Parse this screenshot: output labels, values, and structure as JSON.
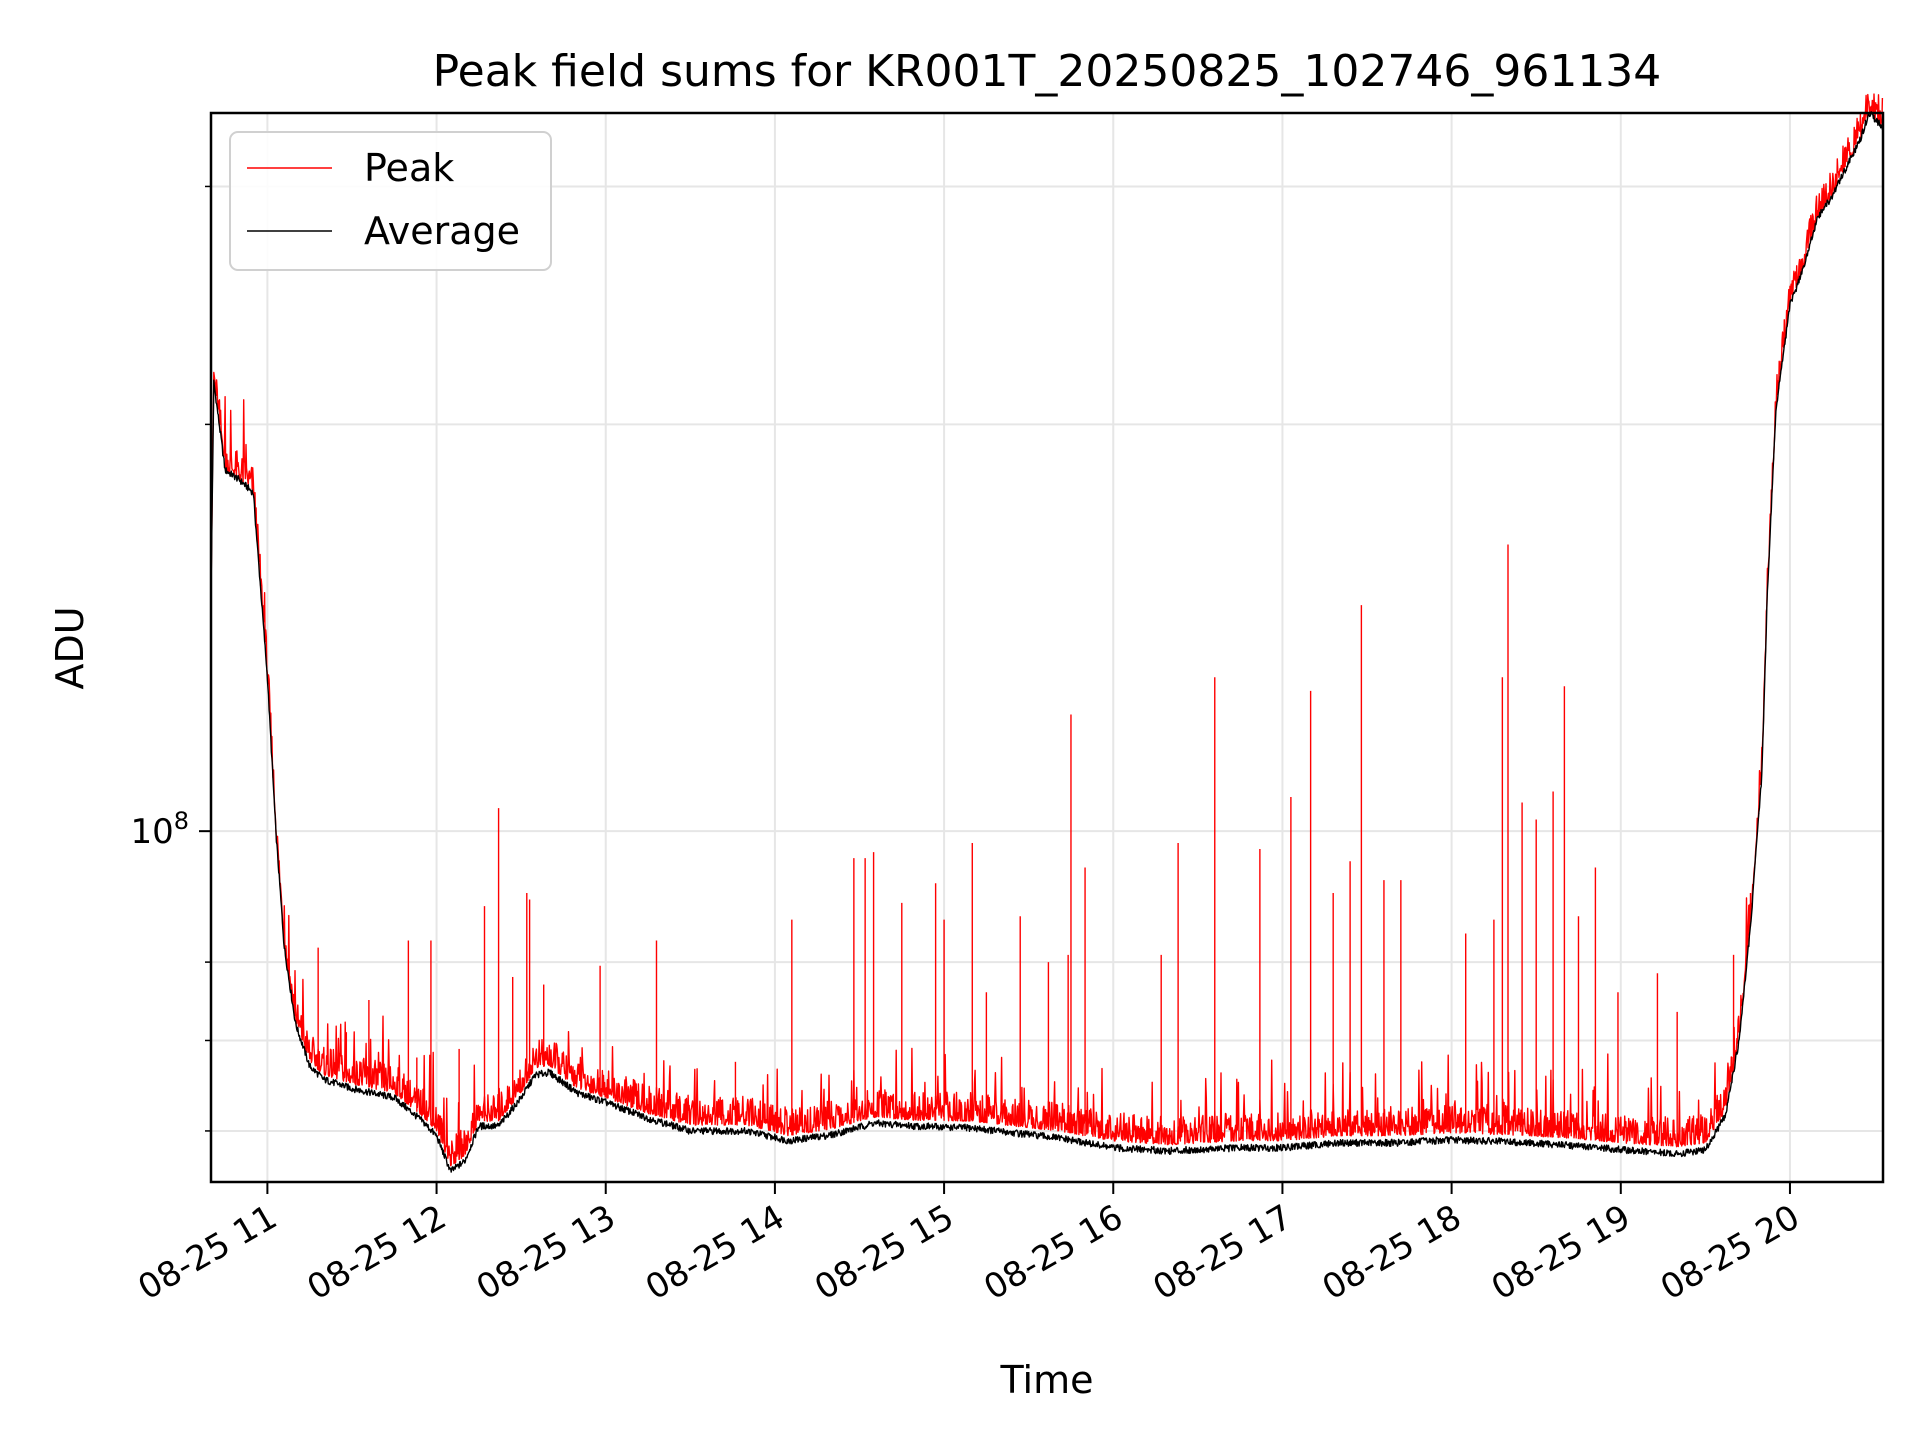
{
  "chart_data": {
    "type": "line",
    "title": "Peak field sums for KR001T_20250825_102746_961134",
    "xlabel": "Time",
    "ylabel": "ADU",
    "y_scale": "log",
    "grid": true,
    "legend_position": "top-left",
    "x_tick_labels": [
      "08-25 11",
      "08-25 12",
      "08-25 13",
      "08-25 14",
      "08-25 15",
      "08-25 16",
      "08-25 17",
      "08-25 18",
      "08-25 19",
      "08-25 20"
    ],
    "y_tick_labels": [
      "10^8"
    ],
    "x_range": [
      "2025-08-25 10:40",
      "2025-08-25 20:33"
    ],
    "y_range_adu": [
      55000000,
      340000000
    ],
    "series": [
      {
        "name": "Peak",
        "color": "#ff0000",
        "baseline_points": [
          [
            "10:40",
            150000000
          ],
          [
            "10:41",
            215000000
          ],
          [
            "10:45",
            185000000
          ],
          [
            "10:50",
            182000000
          ],
          [
            "10:55",
            178000000
          ],
          [
            "11:00",
            130000000
          ],
          [
            "11:03",
            100000000
          ],
          [
            "11:06",
            82000000
          ],
          [
            "11:10",
            72000000
          ],
          [
            "11:15",
            67500000
          ],
          [
            "11:20",
            66000000
          ],
          [
            "11:30",
            65000000
          ],
          [
            "11:45",
            64000000
          ],
          [
            "11:55",
            61500000
          ],
          [
            "12:00",
            60000000
          ],
          [
            "12:05",
            56500000
          ],
          [
            "12:10",
            57500000
          ],
          [
            "12:15",
            61000000
          ],
          [
            "12:22",
            61000000
          ],
          [
            "12:30",
            64000000
          ],
          [
            "12:35",
            66800000
          ],
          [
            "12:40",
            67000000
          ],
          [
            "12:50",
            64500000
          ],
          [
            "13:00",
            63500000
          ],
          [
            "13:15",
            61800000
          ],
          [
            "13:30",
            60600000
          ],
          [
            "13:50",
            60600000
          ],
          [
            "14:05",
            59500000
          ],
          [
            "14:20",
            60200000
          ],
          [
            "14:35",
            61400000
          ],
          [
            "14:50",
            61100000
          ],
          [
            "15:10",
            61000000
          ],
          [
            "15:40",
            60000000
          ],
          [
            "16:00",
            59000000
          ],
          [
            "16:20",
            58600000
          ],
          [
            "16:45",
            59000000
          ],
          [
            "17:00",
            59000000
          ],
          [
            "17:20",
            59500000
          ],
          [
            "17:40",
            59500000
          ],
          [
            "18:00",
            59800000
          ],
          [
            "18:20",
            59600000
          ],
          [
            "18:40",
            59300000
          ],
          [
            "19:00",
            58800000
          ],
          [
            "19:20",
            58400000
          ],
          [
            "19:30",
            58800000
          ],
          [
            "19:37",
            62000000
          ],
          [
            "19:42",
            70000000
          ],
          [
            "19:46",
            85000000
          ],
          [
            "19:50",
            110000000
          ],
          [
            "19:52",
            150000000
          ],
          [
            "19:55",
            205000000
          ],
          [
            "20:00",
            245000000
          ],
          [
            "20:05",
            262000000
          ],
          [
            "20:10",
            285000000
          ],
          [
            "20:15",
            295000000
          ],
          [
            "20:20",
            310000000
          ],
          [
            "20:25",
            325000000
          ],
          [
            "20:28",
            340000000
          ],
          [
            "20:33",
            332000000
          ]
        ],
        "spikes": [
          [
            "11:18",
            82000000
          ],
          [
            "11:28",
            71000000
          ],
          [
            "11:36",
            75000000
          ],
          [
            "11:50",
            83000000
          ],
          [
            "11:53",
            68000000
          ],
          [
            "11:58",
            83000000
          ],
          [
            "12:08",
            69000000
          ],
          [
            "12:17",
            88000000
          ],
          [
            "12:22",
            104000000
          ],
          [
            "12:27",
            78000000
          ],
          [
            "12:32",
            90000000
          ],
          [
            "12:33",
            89000000
          ],
          [
            "12:38",
            77000000
          ],
          [
            "12:58",
            79500000
          ],
          [
            "13:18",
            83000000
          ],
          [
            "13:46",
            67500000
          ],
          [
            "14:06",
            86000000
          ],
          [
            "14:28",
            95500000
          ],
          [
            "14:32",
            95500000
          ],
          [
            "14:35",
            96500000
          ],
          [
            "14:45",
            88500000
          ],
          [
            "14:57",
            91500000
          ],
          [
            "15:00",
            86000000
          ],
          [
            "15:10",
            98000000
          ],
          [
            "15:15",
            76000000
          ],
          [
            "15:27",
            86500000
          ],
          [
            "15:37",
            80000000
          ],
          [
            "15:44",
            81000000
          ],
          [
            "15:45",
            122000000
          ],
          [
            "15:50",
            94000000
          ],
          [
            "16:17",
            81000000
          ],
          [
            "16:23",
            98000000
          ],
          [
            "16:36",
            130000000
          ],
          [
            "16:52",
            97000000
          ],
          [
            "17:03",
            106000000
          ],
          [
            "17:10",
            127000000
          ],
          [
            "17:18",
            90000000
          ],
          [
            "17:24",
            95000000
          ],
          [
            "17:28",
            147000000
          ],
          [
            "17:36",
            92000000
          ],
          [
            "17:42",
            92000000
          ],
          [
            "18:05",
            84000000
          ],
          [
            "18:15",
            86000000
          ],
          [
            "18:18",
            130000000
          ],
          [
            "18:25",
            105000000
          ],
          [
            "18:30",
            102000000
          ],
          [
            "18:36",
            107000000
          ],
          [
            "18:40",
            128000000
          ],
          [
            "18:45",
            86500000
          ],
          [
            "18:51",
            94000000
          ],
          [
            "18:59",
            76000000
          ],
          [
            "19:13",
            78500000
          ],
          [
            "19:20",
            73500000
          ],
          [
            "19:40",
            81000000
          ],
          [
            "19:46",
            90000000
          ],
          [
            "19:49",
            103000000
          ],
          [
            "18:20",
            163000000
          ]
        ]
      },
      {
        "name": "Average",
        "color": "#000000",
        "baseline_points": [
          [
            "10:40",
            150000000
          ],
          [
            "10:41",
            215000000
          ],
          [
            "10:45",
            185000000
          ],
          [
            "10:50",
            182000000
          ],
          [
            "10:55",
            178000000
          ],
          [
            "11:00",
            130000000
          ],
          [
            "11:03",
            100000000
          ],
          [
            "11:06",
            82000000
          ],
          [
            "11:10",
            72000000
          ],
          [
            "11:15",
            67000000
          ],
          [
            "11:20",
            65500000
          ],
          [
            "11:30",
            64500000
          ],
          [
            "11:45",
            63500000
          ],
          [
            "11:55",
            61000000
          ],
          [
            "12:00",
            59500000
          ],
          [
            "12:05",
            56000000
          ],
          [
            "12:10",
            57000000
          ],
          [
            "12:15",
            60500000
          ],
          [
            "12:22",
            60500000
          ],
          [
            "12:30",
            63500000
          ],
          [
            "12:35",
            66000000
          ],
          [
            "12:40",
            66300000
          ],
          [
            "12:50",
            64000000
          ],
          [
            "13:00",
            63000000
          ],
          [
            "13:15",
            61300000
          ],
          [
            "13:30",
            60000000
          ],
          [
            "13:50",
            60000000
          ],
          [
            "14:05",
            59000000
          ],
          [
            "14:20",
            59600000
          ],
          [
            "14:35",
            60800000
          ],
          [
            "14:50",
            60500000
          ],
          [
            "15:10",
            60300000
          ],
          [
            "15:40",
            59300000
          ],
          [
            "16:00",
            58300000
          ],
          [
            "16:20",
            58000000
          ],
          [
            "16:45",
            58300000
          ],
          [
            "17:00",
            58300000
          ],
          [
            "17:20",
            58800000
          ],
          [
            "17:40",
            58800000
          ],
          [
            "18:00",
            59100000
          ],
          [
            "18:20",
            58900000
          ],
          [
            "18:40",
            58600000
          ],
          [
            "19:00",
            58100000
          ],
          [
            "19:20",
            57700000
          ],
          [
            "19:30",
            58100000
          ],
          [
            "19:37",
            61500000
          ],
          [
            "19:42",
            70000000
          ],
          [
            "19:46",
            85000000
          ],
          [
            "19:50",
            110000000
          ],
          [
            "19:52",
            150000000
          ],
          [
            "19:55",
            205000000
          ],
          [
            "20:00",
            245000000
          ],
          [
            "20:05",
            262000000
          ],
          [
            "20:10",
            285000000
          ],
          [
            "20:15",
            295000000
          ],
          [
            "20:20",
            310000000
          ],
          [
            "20:25",
            325000000
          ],
          [
            "20:28",
            340000000
          ],
          [
            "20:33",
            332000000
          ]
        ]
      }
    ]
  }
}
